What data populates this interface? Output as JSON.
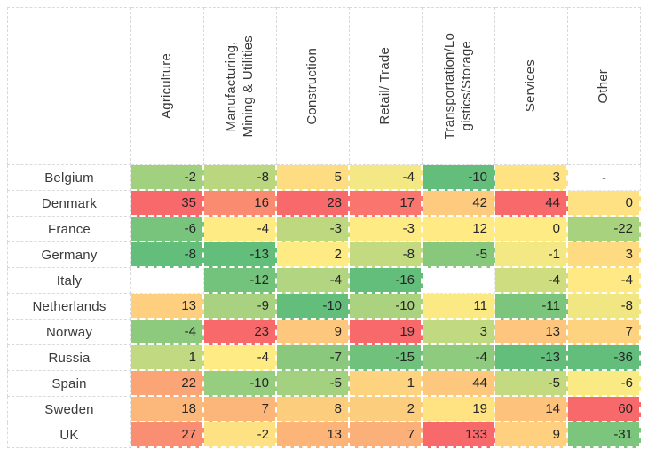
{
  "chart_data": {
    "type": "heatmap",
    "corner_label": "",
    "columns": [
      "Agriculture",
      "Manufacturing,\nMining & Utilities",
      "Construction",
      "Retail/ Trade",
      "Transportation/Lo\ngistics/Storage",
      "Services",
      "Other"
    ],
    "rows": [
      "Belgium",
      "Denmark",
      "France",
      "Germany",
      "Italy",
      "Netherlands",
      "Norway",
      "Russia",
      "Spain",
      "Sweden",
      "UK"
    ],
    "values": [
      [
        -2,
        -8,
        5,
        -4,
        -10,
        3,
        "-"
      ],
      [
        35,
        16,
        28,
        17,
        42,
        44,
        0
      ],
      [
        -6,
        -4,
        -3,
        -3,
        12,
        0,
        -22
      ],
      [
        -8,
        -13,
        2,
        -8,
        -5,
        -1,
        3
      ],
      [
        null,
        -12,
        -4,
        -16,
        null,
        -4,
        -4
      ],
      [
        13,
        -9,
        -10,
        -10,
        11,
        -11,
        -8
      ],
      [
        -4,
        23,
        9,
        19,
        3,
        13,
        7
      ],
      [
        1,
        -4,
        -7,
        -15,
        -4,
        -13,
        -36
      ],
      [
        22,
        -10,
        -5,
        1,
        44,
        -5,
        -6
      ],
      [
        18,
        7,
        8,
        2,
        19,
        14,
        60
      ],
      [
        27,
        -2,
        13,
        7,
        133,
        9,
        -31
      ]
    ],
    "color_scale": {
      "description": "3-color scale applied per column, midpoint at 50th percentile",
      "low": "#63BE7B",
      "mid": "#FFEB84",
      "high": "#F8696B"
    },
    "gridline_color": "#d9d9d9",
    "text_color": "#262626",
    "legend_position": "none",
    "grid": "dashed"
  }
}
